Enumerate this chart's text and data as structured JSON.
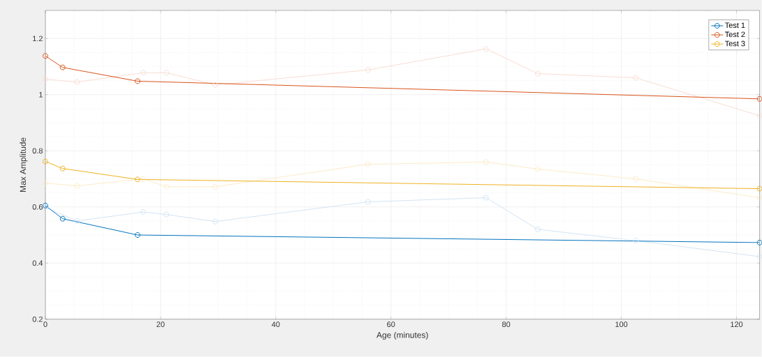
{
  "chart_data": {
    "type": "line",
    "xlabel": "Age (minutes)",
    "ylabel": "Max Amplitude",
    "xlim": [
      0,
      124
    ],
    "ylim": [
      0.2,
      1.3
    ],
    "xticks": [
      0,
      20,
      40,
      60,
      80,
      100,
      120
    ],
    "yticks": [
      0.2,
      0.4,
      0.6,
      0.8,
      1,
      1.2
    ],
    "grid": true,
    "legend": "top right",
    "marker": "circle",
    "line_style": "solid",
    "series": [
      {
        "color": "#d2e4f4",
        "x": [
          0,
          5.5,
          17,
          21,
          29.5,
          56,
          76.5,
          85.5,
          102.5,
          124
        ],
        "values": [
          0.598,
          0.55,
          0.582,
          0.573,
          0.548,
          0.618,
          0.633,
          0.52,
          0.48,
          0.423
        ]
      },
      {
        "color": "#f8ddd3",
        "x": [
          0,
          5.5,
          17,
          21,
          29.5,
          56,
          76.5,
          85.5,
          102.5,
          124
        ],
        "values": [
          1.055,
          1.045,
          1.078,
          1.078,
          1.035,
          1.088,
          1.163,
          1.075,
          1.06,
          0.925
        ]
      },
      {
        "color": "#fcebc8",
        "x": [
          0,
          5.5,
          17,
          21,
          29.5,
          56,
          76.5,
          85.5,
          102.5,
          124
        ],
        "values": [
          0.685,
          0.675,
          0.7,
          0.672,
          0.672,
          0.752,
          0.76,
          0.735,
          0.7,
          0.633
        ]
      },
      {
        "name": "Test 1",
        "color": "#0072bd",
        "x": [
          0,
          3,
          16,
          124
        ],
        "values": [
          0.605,
          0.558,
          0.5,
          0.473
        ]
      },
      {
        "name": "Test 2",
        "color": "#d95319",
        "x": [
          0,
          3,
          16,
          124
        ],
        "values": [
          1.138,
          1.097,
          1.048,
          0.985
        ]
      },
      {
        "name": "Test 3",
        "color": "#edb120",
        "x": [
          0,
          3,
          16,
          124
        ],
        "values": [
          0.762,
          0.737,
          0.698,
          0.665
        ]
      }
    ]
  }
}
